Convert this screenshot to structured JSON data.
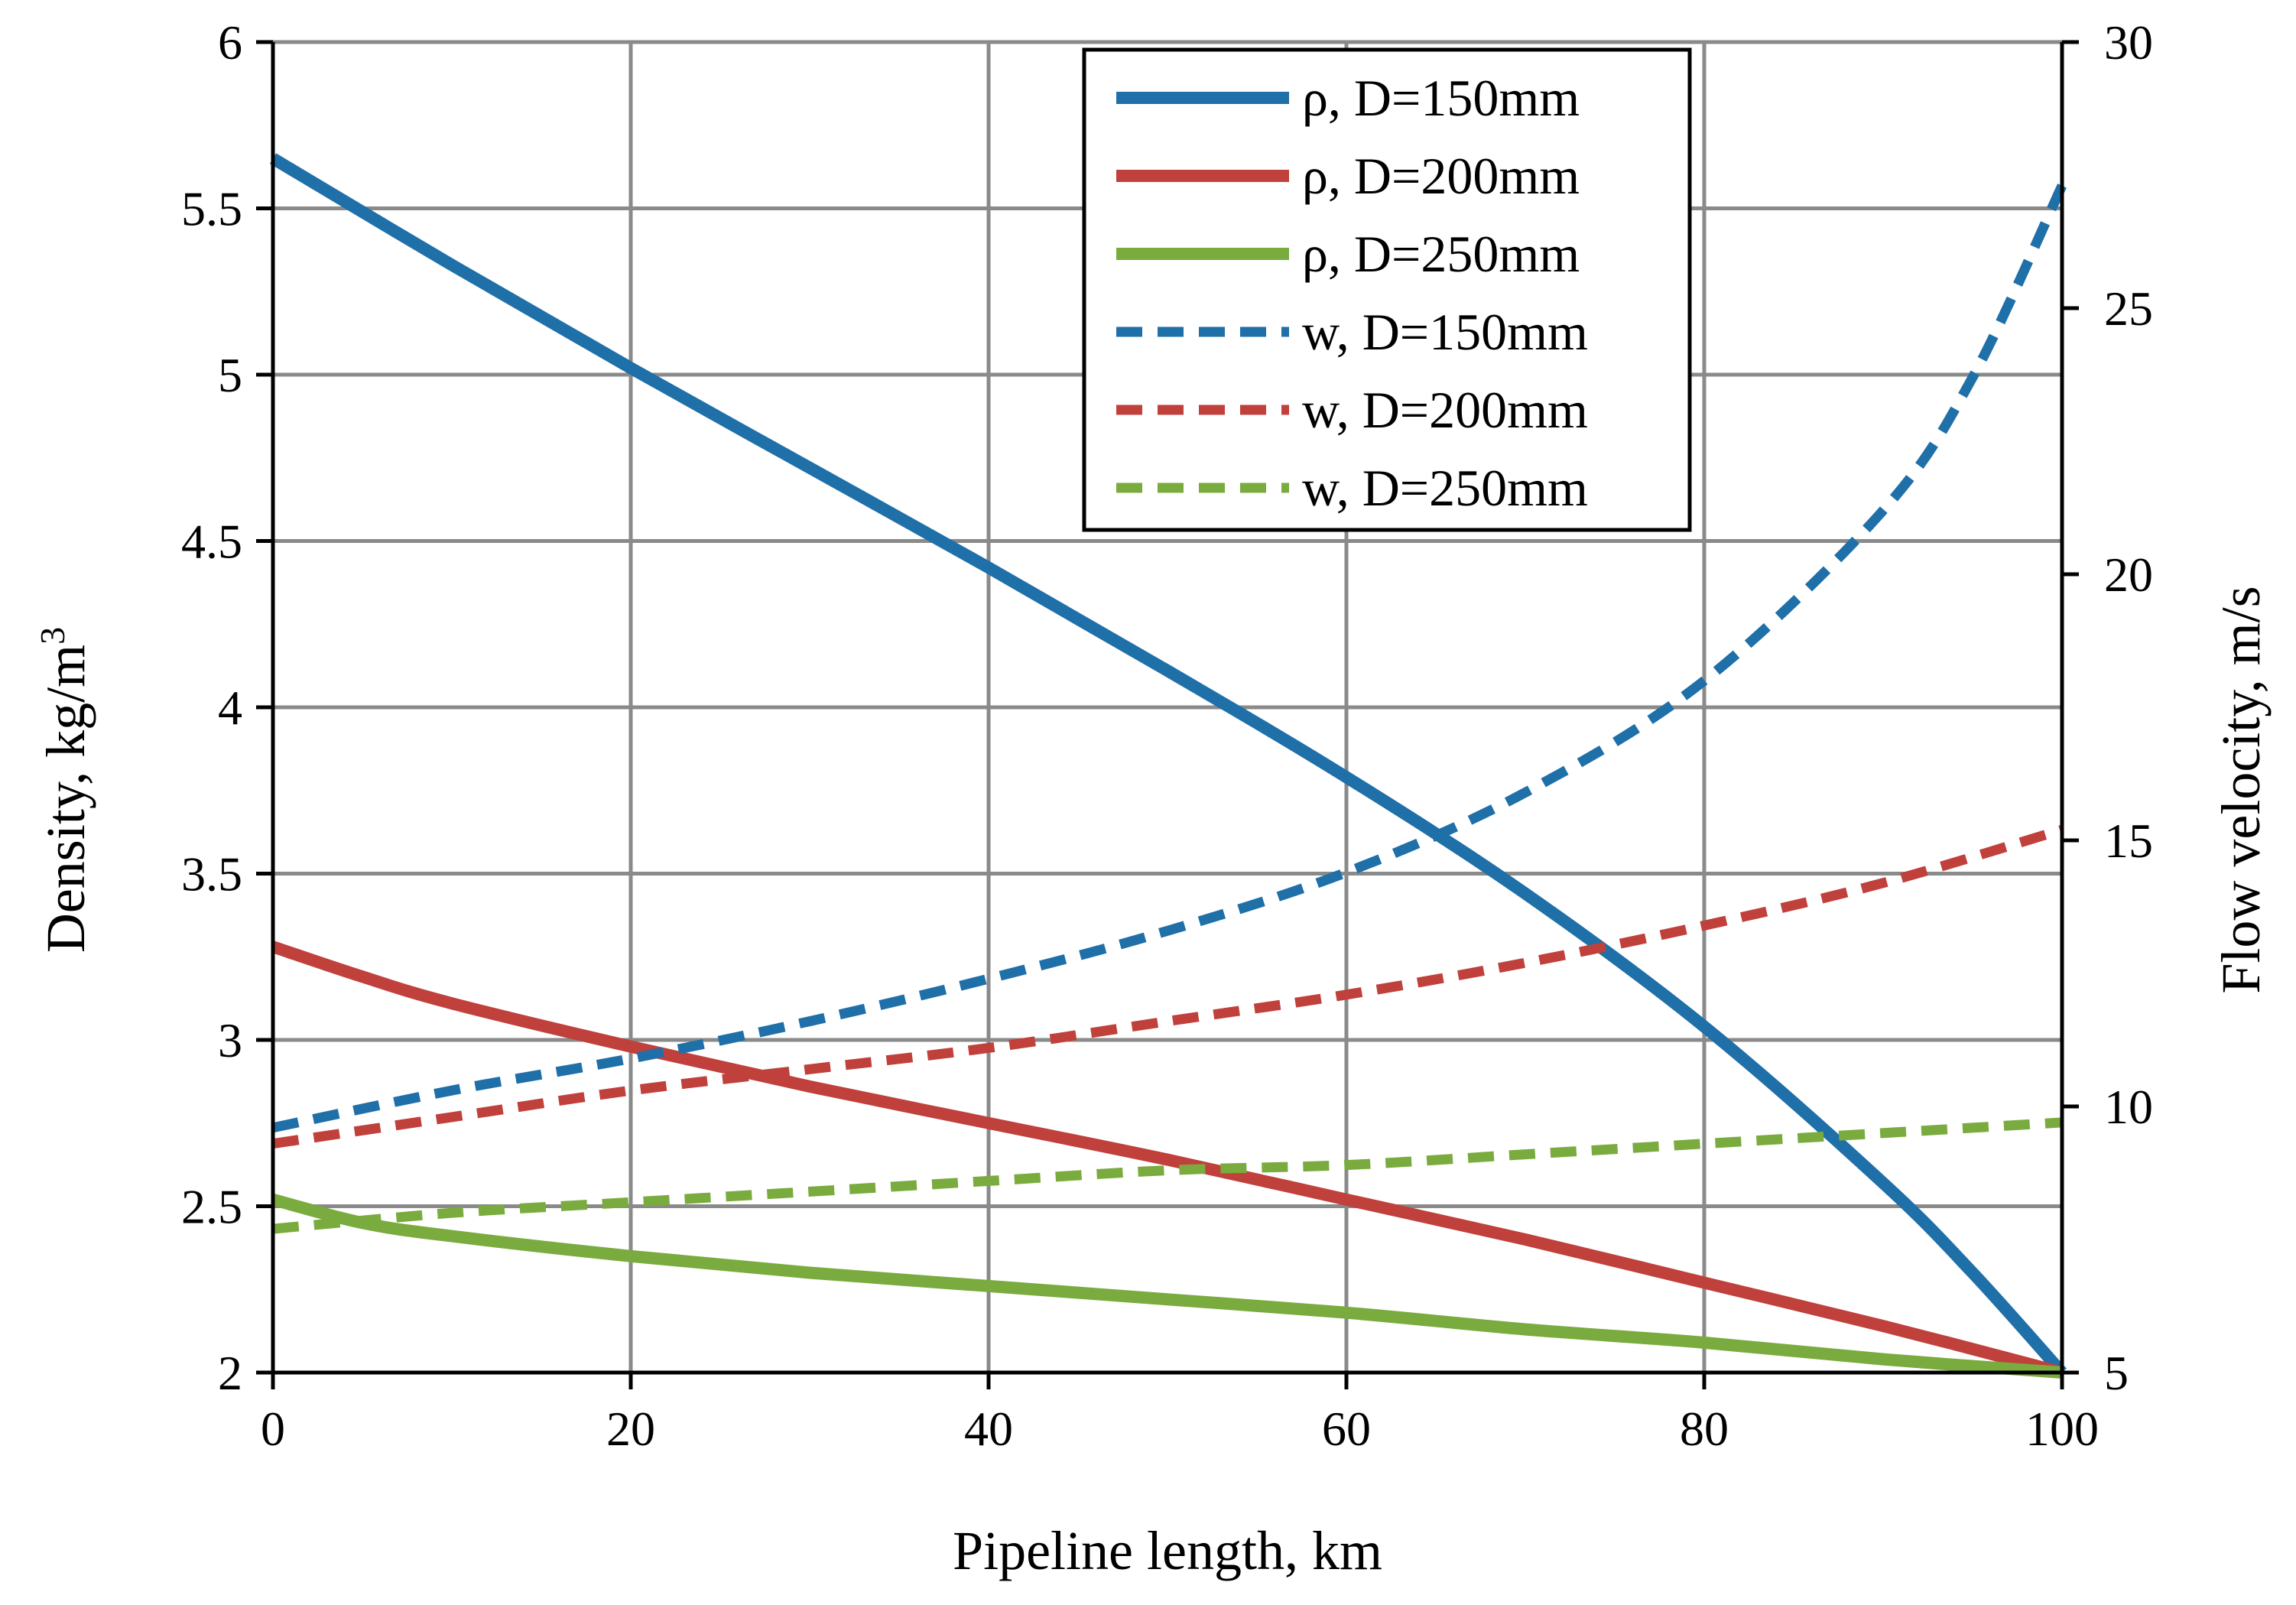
{
  "chart_data": {
    "type": "line",
    "xlabel": "Pipeline length, km",
    "ylabel": "Density, kg/m",
    "ylabel_sup": "3",
    "y2label": "Flow velocity, m/s",
    "xlim": [
      0,
      100
    ],
    "ylim": [
      2,
      6
    ],
    "y2lim": [
      5,
      30
    ],
    "x_ticks": [
      0,
      20,
      40,
      60,
      80,
      100
    ],
    "y_ticks": [
      2,
      2.5,
      3,
      3.5,
      4,
      4.5,
      5,
      5.5,
      6
    ],
    "y2_ticks": [
      5,
      10,
      15,
      20,
      25,
      30
    ],
    "grid": true,
    "legend_position": "top-right",
    "series": [
      {
        "name": "ρ, D=150mm",
        "axis": "left",
        "color": "#1f6fa8",
        "dash": "solid",
        "x": [
          0,
          10,
          20,
          30,
          40,
          50,
          60,
          70,
          80,
          90,
          95,
          100
        ],
        "y": [
          5.65,
          5.33,
          5.02,
          4.72,
          4.42,
          4.11,
          3.79,
          3.44,
          3.04,
          2.57,
          2.3,
          2.0
        ]
      },
      {
        "name": "ρ, D=200mm",
        "axis": "left",
        "color": "#c0403c",
        "dash": "solid",
        "x": [
          0,
          5,
          10,
          20,
          30,
          40,
          50,
          60,
          70,
          80,
          90,
          100
        ],
        "y": [
          3.28,
          3.19,
          3.11,
          2.98,
          2.86,
          2.75,
          2.64,
          2.52,
          2.4,
          2.27,
          2.14,
          2.0
        ]
      },
      {
        "name": "ρ, D=250mm",
        "axis": "left",
        "color": "#7aab3e",
        "dash": "solid",
        "x": [
          0,
          5,
          10,
          20,
          30,
          40,
          50,
          60,
          70,
          80,
          90,
          100
        ],
        "y": [
          2.52,
          2.45,
          2.41,
          2.35,
          2.3,
          2.26,
          2.22,
          2.18,
          2.13,
          2.09,
          2.04,
          2.0
        ]
      },
      {
        "name": "w, D=150mm",
        "axis": "right",
        "color": "#1f6fa8",
        "dash": "dashed",
        "x": [
          0,
          10,
          20,
          30,
          40,
          50,
          60,
          70,
          80,
          90,
          95,
          100
        ],
        "y": [
          9.6,
          10.3,
          10.9,
          11.6,
          12.4,
          13.3,
          14.4,
          15.9,
          18.0,
          21.2,
          23.7,
          27.3
        ]
      },
      {
        "name": "w, D=200mm",
        "axis": "right",
        "color": "#c0403c",
        "dash": "dashed",
        "x": [
          0,
          10,
          20,
          30,
          40,
          50,
          60,
          70,
          80,
          90,
          100
        ],
        "y": [
          9.3,
          9.8,
          10.3,
          10.7,
          11.1,
          11.6,
          12.1,
          12.7,
          13.4,
          14.2,
          15.2
        ]
      },
      {
        "name": "w, D=250mm",
        "axis": "right",
        "color": "#7aab3e",
        "dash": "dashed",
        "x": [
          0,
          10,
          20,
          30,
          40,
          50,
          60,
          70,
          80,
          90,
          100
        ],
        "y": [
          7.7,
          8.0,
          8.2,
          8.4,
          8.6,
          8.8,
          8.9,
          9.1,
          9.3,
          9.5,
          9.7
        ]
      }
    ]
  }
}
